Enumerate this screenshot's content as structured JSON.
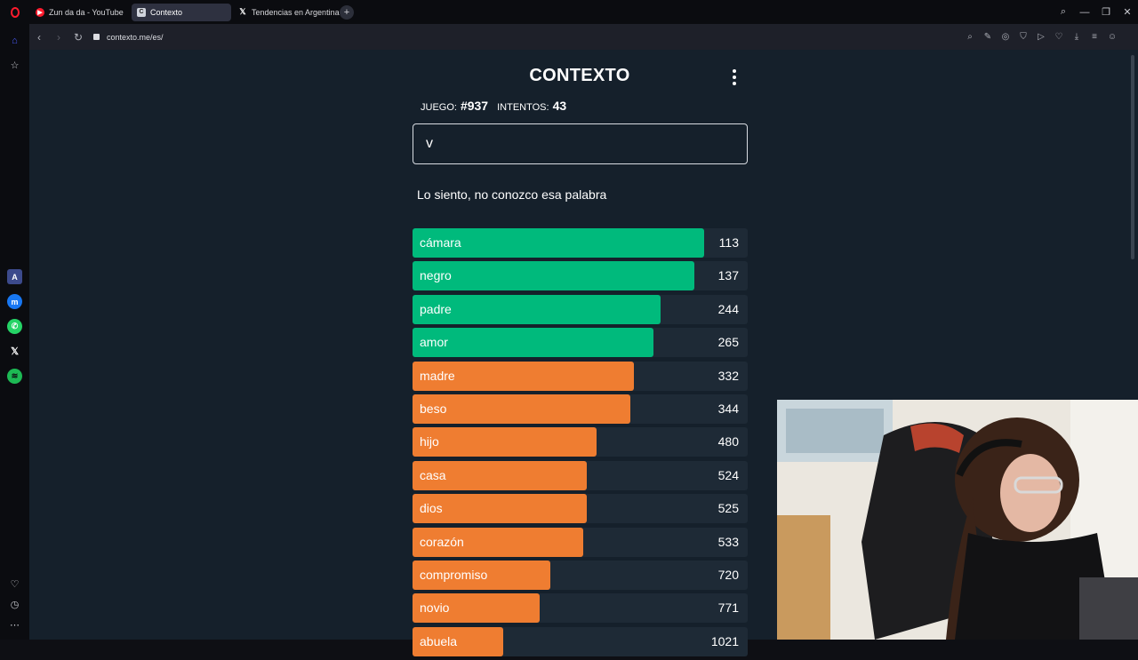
{
  "browser": {
    "tabs": [
      {
        "label": "Zun da da - YouTube",
        "icon": "youtube-icon",
        "active": false
      },
      {
        "label": "Contexto",
        "icon": "contexto-icon",
        "active": true
      },
      {
        "label": "Tendencias en Argentina",
        "icon": "x-icon",
        "active": false
      }
    ],
    "url": "contexto.me/es/"
  },
  "game": {
    "title": "CONTEXTO",
    "game_label": "JUEGO:",
    "game_number": "#937",
    "attempts_label": "INTENTOS:",
    "attempts": "43",
    "input_value": "v",
    "message": "Lo siento, no conozco esa palabra"
  },
  "colors": {
    "green": "#00ba7c",
    "orange": "#ef7d31",
    "track": "#1e2a36",
    "background": "#15202b"
  },
  "guesses": [
    {
      "word": "cámara",
      "distance": "113",
      "color": "green",
      "fill": 0.87
    },
    {
      "word": "negro",
      "distance": "137",
      "color": "green",
      "fill": 0.84
    },
    {
      "word": "padre",
      "distance": "244",
      "color": "green",
      "fill": 0.74
    },
    {
      "word": "amor",
      "distance": "265",
      "color": "green",
      "fill": 0.72
    },
    {
      "word": "madre",
      "distance": "332",
      "color": "orange",
      "fill": 0.66
    },
    {
      "word": "beso",
      "distance": "344",
      "color": "orange",
      "fill": 0.65
    },
    {
      "word": "hijo",
      "distance": "480",
      "color": "orange",
      "fill": 0.55
    },
    {
      "word": "casa",
      "distance": "524",
      "color": "orange",
      "fill": 0.52
    },
    {
      "word": "dios",
      "distance": "525",
      "color": "orange",
      "fill": 0.52
    },
    {
      "word": "corazón",
      "distance": "533",
      "color": "orange",
      "fill": 0.51
    },
    {
      "word": "compromiso",
      "distance": "720",
      "color": "orange",
      "fill": 0.41
    },
    {
      "word": "novio",
      "distance": "771",
      "color": "orange",
      "fill": 0.38
    },
    {
      "word": "abuela",
      "distance": "1021",
      "color": "orange",
      "fill": 0.27
    }
  ]
}
